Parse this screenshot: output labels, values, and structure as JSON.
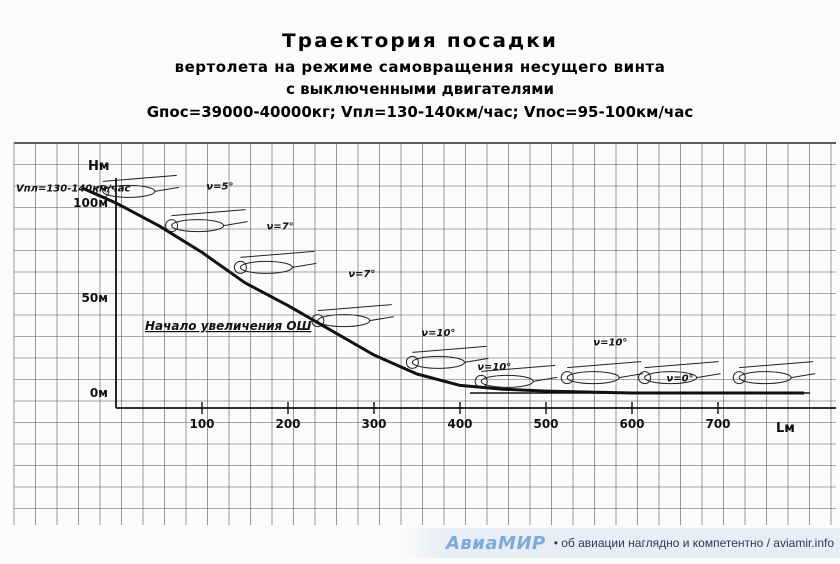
{
  "header": {
    "title": "Траектория посадки",
    "subtitle_line1": "вертолета на режиме самовращения несущего винта",
    "subtitle_line2": "с выключенными двигателями",
    "params": "Gпос=39000-40000кг; Vпл=130-140км/час; Vпос=95-100км/час"
  },
  "chart_data": {
    "type": "line",
    "xlabel": "Lм",
    "ylabel": "Hм",
    "x_ticks": [
      100,
      200,
      300,
      400,
      500,
      600,
      700
    ],
    "y_ticks": [
      {
        "value": 0,
        "label": "0м"
      },
      {
        "value": 50,
        "label": "50м"
      },
      {
        "value": 100,
        "label": "100м"
      }
    ],
    "xlim": [
      0,
      800
    ],
    "ylim": [
      -10,
      125
    ],
    "grid": true,
    "series": [
      {
        "x": [
          -40,
          0,
          50,
          100,
          150,
          200,
          250,
          300,
          350,
          400,
          450,
          500,
          600,
          700,
          800
        ],
        "y": [
          108,
          100,
          88,
          74,
          58,
          46,
          33,
          20,
          10,
          4,
          2,
          1,
          0,
          0,
          0
        ]
      }
    ],
    "annotations": [
      {
        "x": 0,
        "y": 106,
        "text": "Vпл=130-140км/час"
      },
      {
        "x": 105,
        "y": 107,
        "text": "ν=5°"
      },
      {
        "x": 175,
        "y": 86,
        "text": "ν=7°"
      },
      {
        "x": 270,
        "y": 61,
        "text": "ν=7°"
      },
      {
        "x": 355,
        "y": 30,
        "text": "ν=10°"
      },
      {
        "x": 420,
        "y": 12,
        "text": "ν=10°"
      },
      {
        "x": 555,
        "y": 25,
        "text": "ν=10°"
      },
      {
        "x": 640,
        "y": 6,
        "text": "ν=0°"
      },
      {
        "x": 30,
        "y": 40,
        "text": "Начало увеличения ОШ"
      }
    ]
  },
  "footer": {
    "brand": "АвиаМИР",
    "tagline": "• об авиации наглядно и компетентно / aviamir.info"
  }
}
